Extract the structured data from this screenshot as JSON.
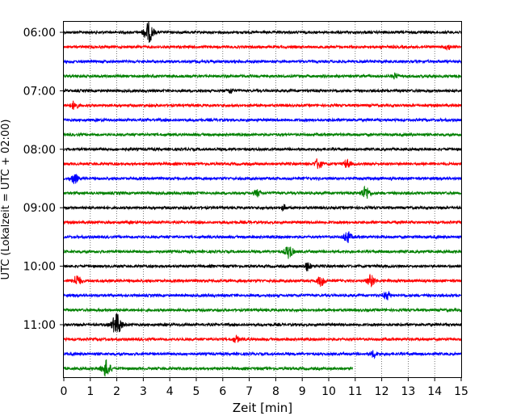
{
  "chart_data": {
    "type": "line",
    "title": "",
    "xlabel": "Zeit  [min]",
    "ylabel": "UTC (Lokalzeit = UTC + 02:00)",
    "xlim": [
      0,
      15
    ],
    "x_ticks": [
      0,
      1,
      2,
      3,
      4,
      5,
      6,
      7,
      8,
      9,
      10,
      11,
      12,
      13,
      14,
      15
    ],
    "y_ticks": [
      "06:00",
      "07:00",
      "08:00",
      "09:00",
      "10:00",
      "11:00"
    ],
    "grid": "vertical dotted",
    "line_interval_minutes": 15,
    "series_colors": [
      "#000000",
      "#ff0000",
      "#0000ff",
      "#008000"
    ],
    "series": [
      {
        "start": "06:00",
        "end_minute": 15,
        "events": [
          {
            "x": 3.2,
            "amp": 12
          }
        ]
      },
      {
        "start": "06:15",
        "end_minute": 15,
        "events": [
          {
            "x": 14.5,
            "amp": 3
          }
        ]
      },
      {
        "start": "06:30",
        "end_minute": 15,
        "events": []
      },
      {
        "start": "06:45",
        "end_minute": 15,
        "events": [
          {
            "x": 12.5,
            "amp": 3
          }
        ]
      },
      {
        "start": "07:00",
        "end_minute": 15,
        "events": [
          {
            "x": 6.3,
            "amp": 3
          }
        ]
      },
      {
        "start": "07:15",
        "end_minute": 15,
        "events": [
          {
            "x": 0.4,
            "amp": 5
          }
        ]
      },
      {
        "start": "07:30",
        "end_minute": 15,
        "events": []
      },
      {
        "start": "07:45",
        "end_minute": 15,
        "events": []
      },
      {
        "start": "08:00",
        "end_minute": 15,
        "events": []
      },
      {
        "start": "08:15",
        "end_minute": 15,
        "events": [
          {
            "x": 9.6,
            "amp": 6
          },
          {
            "x": 10.7,
            "amp": 5
          }
        ]
      },
      {
        "start": "08:30",
        "end_minute": 15,
        "events": [
          {
            "x": 0.4,
            "amp": 6
          }
        ]
      },
      {
        "start": "08:45",
        "end_minute": 15,
        "events": [
          {
            "x": 7.3,
            "amp": 4
          },
          {
            "x": 11.4,
            "amp": 8
          }
        ]
      },
      {
        "start": "09:00",
        "end_minute": 15,
        "events": [
          {
            "x": 8.3,
            "amp": 3
          }
        ]
      },
      {
        "start": "09:15",
        "end_minute": 15,
        "events": []
      },
      {
        "start": "09:30",
        "end_minute": 15,
        "events": [
          {
            "x": 10.7,
            "amp": 7
          }
        ]
      },
      {
        "start": "09:45",
        "end_minute": 15,
        "events": [
          {
            "x": 8.5,
            "amp": 8
          }
        ]
      },
      {
        "start": "10:00",
        "end_minute": 15,
        "events": [
          {
            "x": 9.2,
            "amp": 5
          }
        ]
      },
      {
        "start": "10:15",
        "end_minute": 15,
        "events": [
          {
            "x": 0.5,
            "amp": 7
          },
          {
            "x": 9.7,
            "amp": 6
          },
          {
            "x": 11.6,
            "amp": 7
          }
        ]
      },
      {
        "start": "10:30",
        "end_minute": 15,
        "events": [
          {
            "x": 12.2,
            "amp": 5
          }
        ]
      },
      {
        "start": "10:45",
        "end_minute": 15,
        "events": []
      },
      {
        "start": "11:00",
        "end_minute": 15,
        "events": [
          {
            "x": 2.0,
            "amp": 13
          }
        ]
      },
      {
        "start": "11:15",
        "end_minute": 15,
        "events": [
          {
            "x": 6.5,
            "amp": 4
          }
        ]
      },
      {
        "start": "11:30",
        "end_minute": 15,
        "events": [
          {
            "x": 11.7,
            "amp": 4
          }
        ]
      },
      {
        "start": "11:45",
        "end_minute": 10.9,
        "events": [
          {
            "x": 1.6,
            "amp": 10
          }
        ]
      }
    ]
  }
}
